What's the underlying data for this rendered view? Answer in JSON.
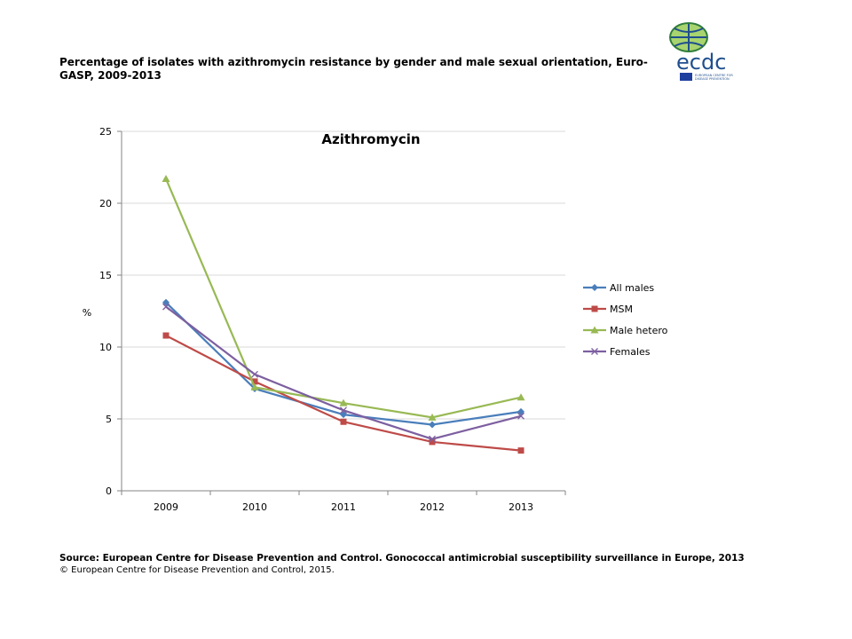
{
  "page": {
    "title": "Percentage of isolates with azithromycin resistance by gender and male sexual orientation, Euro-GASP, 2009-2013",
    "source": "Source: European Centre for Disease Prevention and Control.  Gonococcal antimicrobial susceptibility surveillance in Europe, 2013",
    "copyright": "© European Centre for Disease Prevention and Control, 2015.",
    "logo": {
      "text": "ecdc",
      "subtext": "EUROPEAN CENTRE FOR DISEASE PREVENTION AND CONTROL"
    }
  },
  "chart_data": {
    "type": "line",
    "title": "Azithromycin",
    "xlabel": "",
    "ylabel": "%",
    "categories": [
      "2009",
      "2010",
      "2011",
      "2012",
      "2013"
    ],
    "ylim": [
      0,
      25
    ],
    "yticks": [
      "0",
      "5",
      "10",
      "15",
      "20",
      "25"
    ],
    "grid": true,
    "legend": "right",
    "series": [
      {
        "name": "All males",
        "values": [
          13.1,
          7.1,
          5.3,
          4.6,
          5.5
        ],
        "color": "#4a7ebb",
        "marker": "diamond"
      },
      {
        "name": "MSM",
        "values": [
          10.8,
          7.6,
          4.8,
          3.4,
          2.8
        ],
        "color": "#be4b48",
        "marker": "square"
      },
      {
        "name": "Male hetero",
        "values": [
          21.7,
          7.2,
          6.1,
          5.1,
          6.5
        ],
        "color": "#98b954",
        "marker": "triangle"
      },
      {
        "name": "Females",
        "values": [
          12.8,
          8.1,
          5.6,
          3.6,
          5.2
        ],
        "color": "#7d5fa0",
        "marker": "x"
      }
    ]
  }
}
